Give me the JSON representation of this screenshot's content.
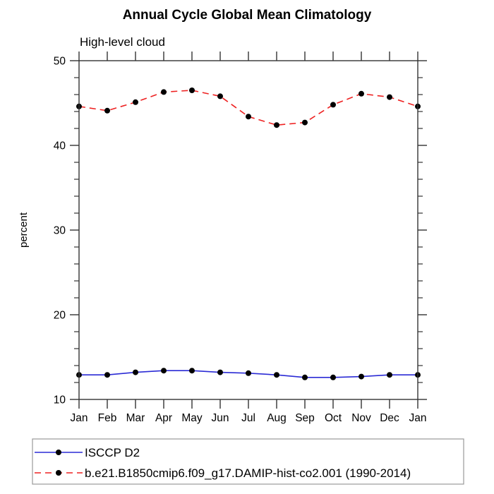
{
  "title": "Annual Cycle Global Mean Climatology",
  "subtitle": "High-level cloud",
  "chart_data": {
    "type": "line",
    "title": "Annual Cycle Global Mean Climatology",
    "subtitle": "High-level cloud",
    "xlabel": "",
    "ylabel": "percent",
    "x": [
      "Jan",
      "Feb",
      "Mar",
      "Apr",
      "May",
      "Jun",
      "Jul",
      "Aug",
      "Sep",
      "Oct",
      "Nov",
      "Dec",
      "Jan"
    ],
    "ylim": [
      10,
      50
    ],
    "yticks_major": [
      10,
      20,
      30,
      40,
      50
    ],
    "ytick_minor_step": 2,
    "grid": "off",
    "frame": "box-with-outward-ticks",
    "legend_position": "bottom-left-boxed",
    "axis_color": "#333333",
    "marker_color": "#000000",
    "series": [
      {
        "name": "ISCCP D2",
        "color": "#2b2bd5",
        "line_style": "solid",
        "marker": "filled-circle",
        "values": [
          12.9,
          12.9,
          13.2,
          13.4,
          13.4,
          13.2,
          13.1,
          12.9,
          12.6,
          12.6,
          12.7,
          12.9,
          12.9
        ]
      },
      {
        "name": "b.e21.B1850cmip6.f09_g17.DAMIP-hist-co2.001 (1990-2014)",
        "color": "#ee2222",
        "line_style": "dashed",
        "marker": "filled-circle",
        "values": [
          44.6,
          44.1,
          45.1,
          46.3,
          46.5,
          45.8,
          43.4,
          42.4,
          42.7,
          44.8,
          46.1,
          45.7,
          44.6
        ]
      }
    ]
  }
}
